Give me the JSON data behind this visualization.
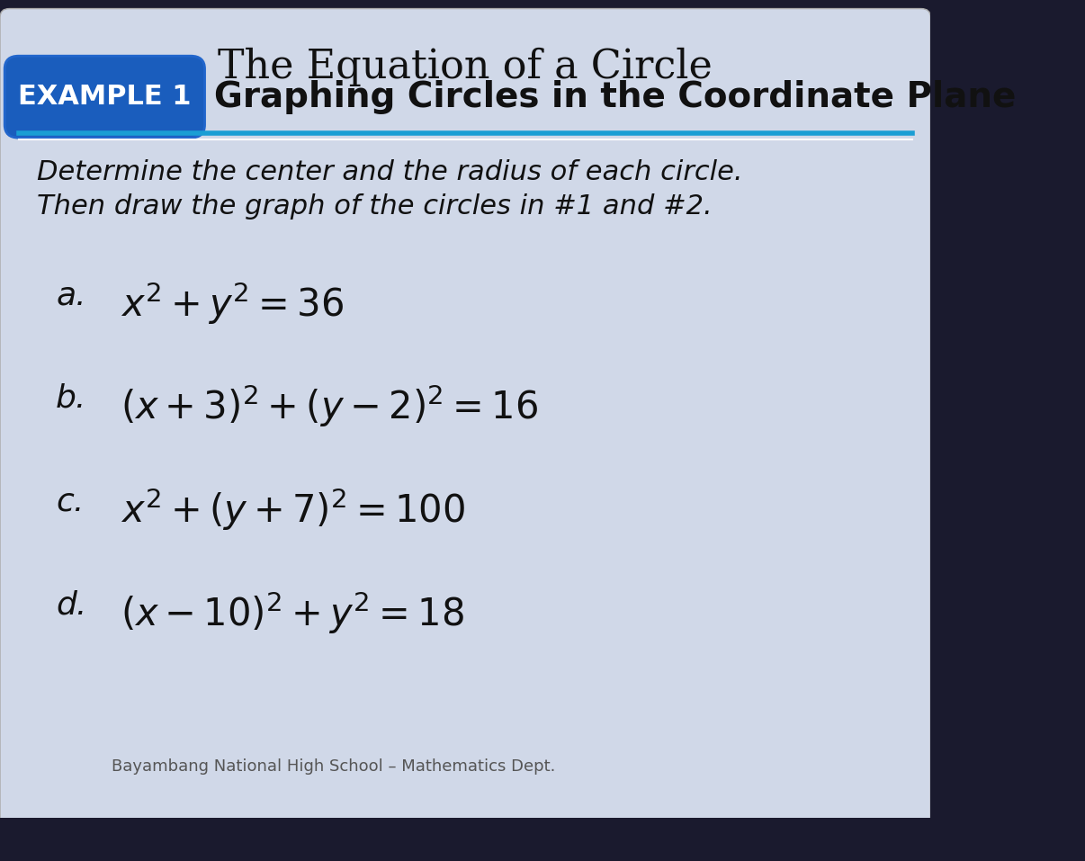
{
  "title": "The Equation of a Circle",
  "title_fontsize": 32,
  "title_color": "#111111",
  "example_label": "EXAMPLE 1",
  "example_label_bg": "#1a5dbd",
  "example_label_color": "#ffffff",
  "example_heading": "Graphing Circles in the Coordinate Plane",
  "example_heading_fontsize": 28,
  "example_heading_color": "#111111",
  "divider_color": "#1a9ed4",
  "instruction_line1": "Determine the center and the radius of each circle.",
  "instruction_line2": "Then draw the graph of the circles in #1 and #2.",
  "instruction_fontsize": 22,
  "instruction_color": "#111111",
  "equations": [
    {
      "label": "a.",
      "eq": "$x^2 + y^2 = 36$"
    },
    {
      "label": "b.",
      "eq": "$(x + 3)^2+(y - 2)^2= 16$"
    },
    {
      "label": "c.",
      "eq": "$x^2 + (y + 7)^2= 100$"
    },
    {
      "label": "d.",
      "eq": "$(x - 10)^2+y^2 = 18$"
    }
  ],
  "eq_label_fontsize": 26,
  "eq_fontsize": 30,
  "eq_color": "#111111",
  "footer": "Bayambang National High School – Mathematics Dept.",
  "footer_fontsize": 13,
  "footer_color": "#555555",
  "bg_color": "#d0d8e8",
  "outer_bg": "#1a1a2e"
}
